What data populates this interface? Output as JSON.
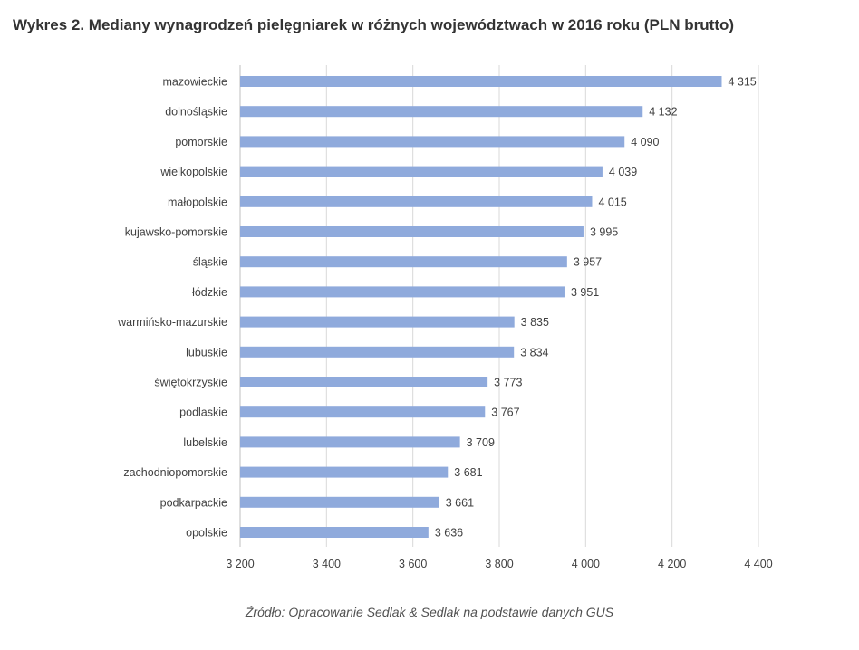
{
  "title": "Wykres 2. Mediany wynagrodzeń pielęgniarek w różnych województwach w 2016 roku (PLN brutto)",
  "source": "Źródło: Opracowanie Sedlak & Sedlak na podstawie danych GUS",
  "colors": {
    "bar": "#8faadc",
    "gridline": "#d9d9d9",
    "axis": "#bfbfbf",
    "text": "#404040"
  },
  "chart_data": {
    "type": "bar",
    "orientation": "horizontal",
    "title": "Wykres 2. Mediany wynagrodzeń pielęgniarek w różnych województwach w 2016 roku (PLN brutto)",
    "categories": [
      "mazowieckie",
      "dolnośląskie",
      "pomorskie",
      "wielkopolskie",
      "małopolskie",
      "kujawsko-pomorskie",
      "śląskie",
      "łódzkie",
      "warmińsko-mazurskie",
      "lubuskie",
      "świętokrzyskie",
      "podlaskie",
      "lubelskie",
      "zachodniopomorskie",
      "podkarpackie",
      "opolskie"
    ],
    "values": [
      4315,
      4132,
      4090,
      4039,
      4015,
      3995,
      3957,
      3951,
      3835,
      3834,
      3773,
      3767,
      3709,
      3681,
      3661,
      3636
    ],
    "value_labels": [
      "4 315",
      "4 132",
      "4 090",
      "4 039",
      "4 015",
      "3 995",
      "3 957",
      "3 951",
      "3 835",
      "3 834",
      "3 773",
      "3 767",
      "3 709",
      "3 681",
      "3 661",
      "3 636"
    ],
    "xlim": [
      3200,
      4400
    ],
    "xticks": [
      3200,
      3400,
      3600,
      3800,
      4000,
      4200,
      4400
    ],
    "xtick_labels": [
      "3 200",
      "3 400",
      "3 600",
      "3 800",
      "4 000",
      "4 200",
      "4 400"
    ],
    "xlabel": "",
    "ylabel": "",
    "grid": true,
    "legend": "none"
  }
}
